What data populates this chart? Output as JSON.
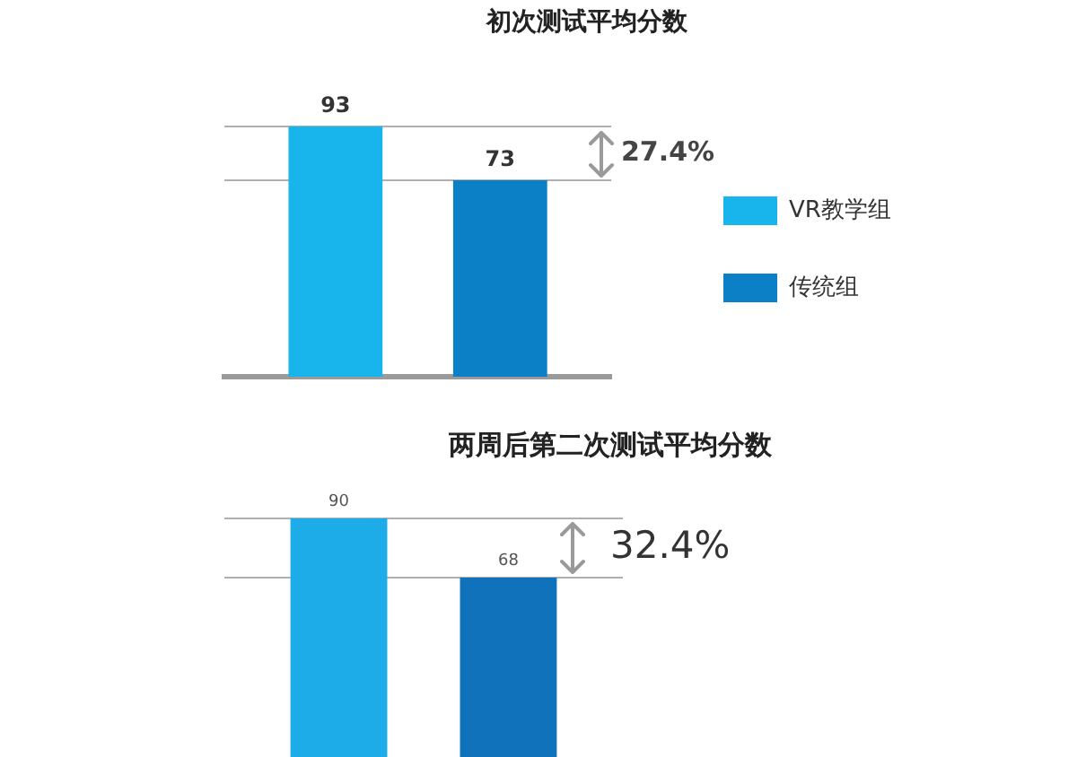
{
  "chart_data": [
    {
      "type": "bar",
      "title": "初次测试平均分数",
      "categories": [
        null
      ],
      "series": [
        {
          "name": "VR教学组",
          "color": "#18b5ec",
          "values": [
            93
          ]
        },
        {
          "name": "传统组",
          "color": "#0b80c6",
          "values": [
            73
          ]
        }
      ],
      "data_labels": true,
      "ref_lines": [
        {
          "axis": "y",
          "value": 93,
          "color": "#b0b0b0"
        },
        {
          "axis": "y",
          "value": 73,
          "color": "#b0b0b0"
        }
      ],
      "annotations": [
        "27.4%"
      ],
      "legend": "right",
      "tick_labels": false
    },
    {
      "type": "bar",
      "title": "两周后第二次测试平均分数",
      "categories": [
        null
      ],
      "series": [
        {
          "color": "#1dace8",
          "values": [
            90
          ]
        },
        {
          "color": "#1072ba",
          "values": [
            68
          ]
        }
      ],
      "data_labels": true,
      "ref_lines": [
        {
          "axis": "y",
          "value": 90,
          "color": "#b0b0b0"
        },
        {
          "axis": "y",
          "value": 68,
          "color": "#b0b0b0"
        }
      ],
      "annotations": [
        "32.4%"
      ],
      "tick_labels": false
    }
  ]
}
